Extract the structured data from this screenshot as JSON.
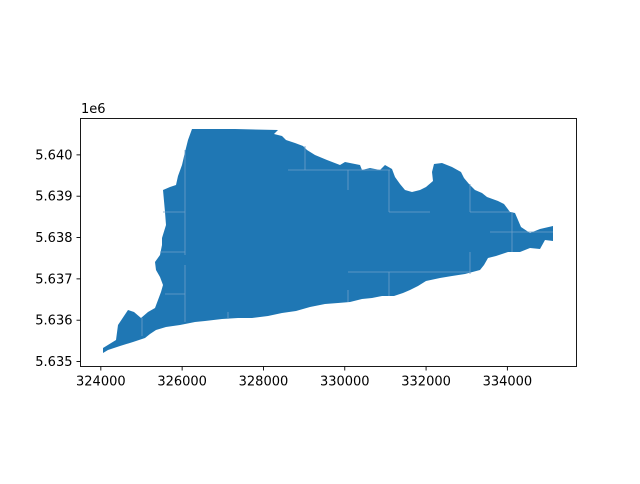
{
  "map": {
    "x_ticks": [
      "324000",
      "326000",
      "328000",
      "330000",
      "332000",
      "334000"
    ],
    "y_ticks": [
      "5.635",
      "5.636",
      "5.637",
      "5.638",
      "5.639",
      "5.640"
    ],
    "y_offset_label": "1e6",
    "fill_color": "#1f77b4",
    "boundary_color": "#6f9fc9"
  },
  "chart_data": {
    "type": "map",
    "xlim": [
      323500,
      335700
    ],
    "ylim": [
      5634880,
      5640880
    ],
    "x_tick_values": [
      324000,
      326000,
      328000,
      330000,
      332000,
      334000
    ],
    "y_tick_values": [
      5635000,
      5636000,
      5637000,
      5638000,
      5639000,
      5640000
    ],
    "y_scale_offset": "1e6",
    "title": "",
    "xlabel": "",
    "ylabel": ""
  }
}
